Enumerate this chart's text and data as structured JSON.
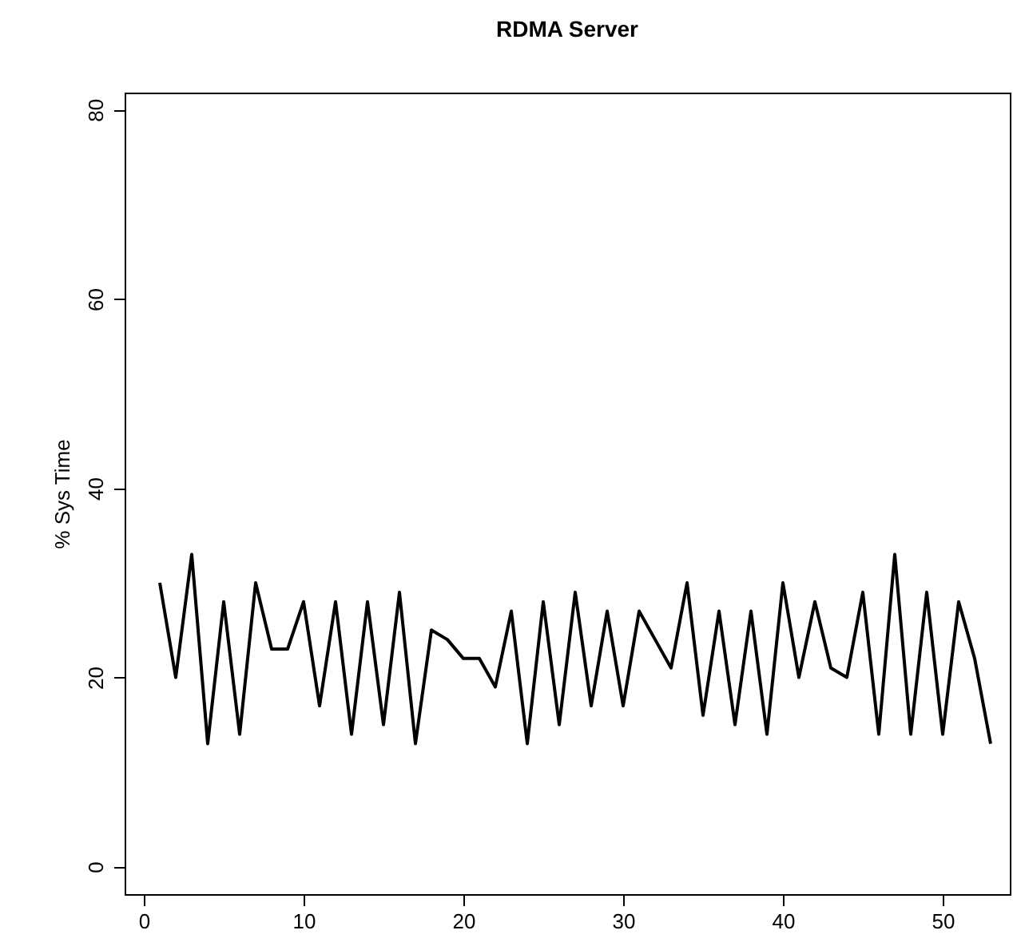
{
  "chart_data": {
    "type": "line",
    "title": "RDMA Server",
    "ylabel": "% Sys Time",
    "x": [
      1,
      2,
      3,
      4,
      5,
      6,
      7,
      8,
      9,
      10,
      11,
      12,
      13,
      14,
      15,
      16,
      17,
      18,
      19,
      20,
      21,
      22,
      23,
      24,
      25,
      26,
      27,
      28,
      29,
      30,
      31,
      32,
      33,
      34,
      35,
      36,
      37,
      38,
      39,
      40,
      41,
      42,
      43,
      44,
      45,
      46,
      47,
      48,
      49,
      50,
      51,
      52,
      53
    ],
    "series": [
      {
        "color": "#000000",
        "values": [
          30,
          20,
          33,
          13,
          28,
          14,
          30,
          23,
          23,
          28,
          17,
          28,
          14,
          28,
          15,
          29,
          13,
          25,
          24,
          22,
          22,
          19,
          27,
          13,
          28,
          15,
          29,
          17,
          27,
          17,
          27,
          24,
          21,
          30,
          16,
          27,
          15,
          27,
          14,
          30,
          20,
          28,
          21,
          20,
          29,
          14,
          33,
          14,
          29,
          14,
          28,
          22,
          13
        ]
      }
    ],
    "xlim": [
      -1.2,
      54.2
    ],
    "ylim": [
      -2.9,
      81.8
    ],
    "xticks": [
      0,
      10,
      20,
      30,
      40,
      50
    ],
    "yticks": [
      0,
      20,
      40,
      60,
      80
    ],
    "grid": false,
    "marker": "none",
    "line_style": "solid"
  }
}
